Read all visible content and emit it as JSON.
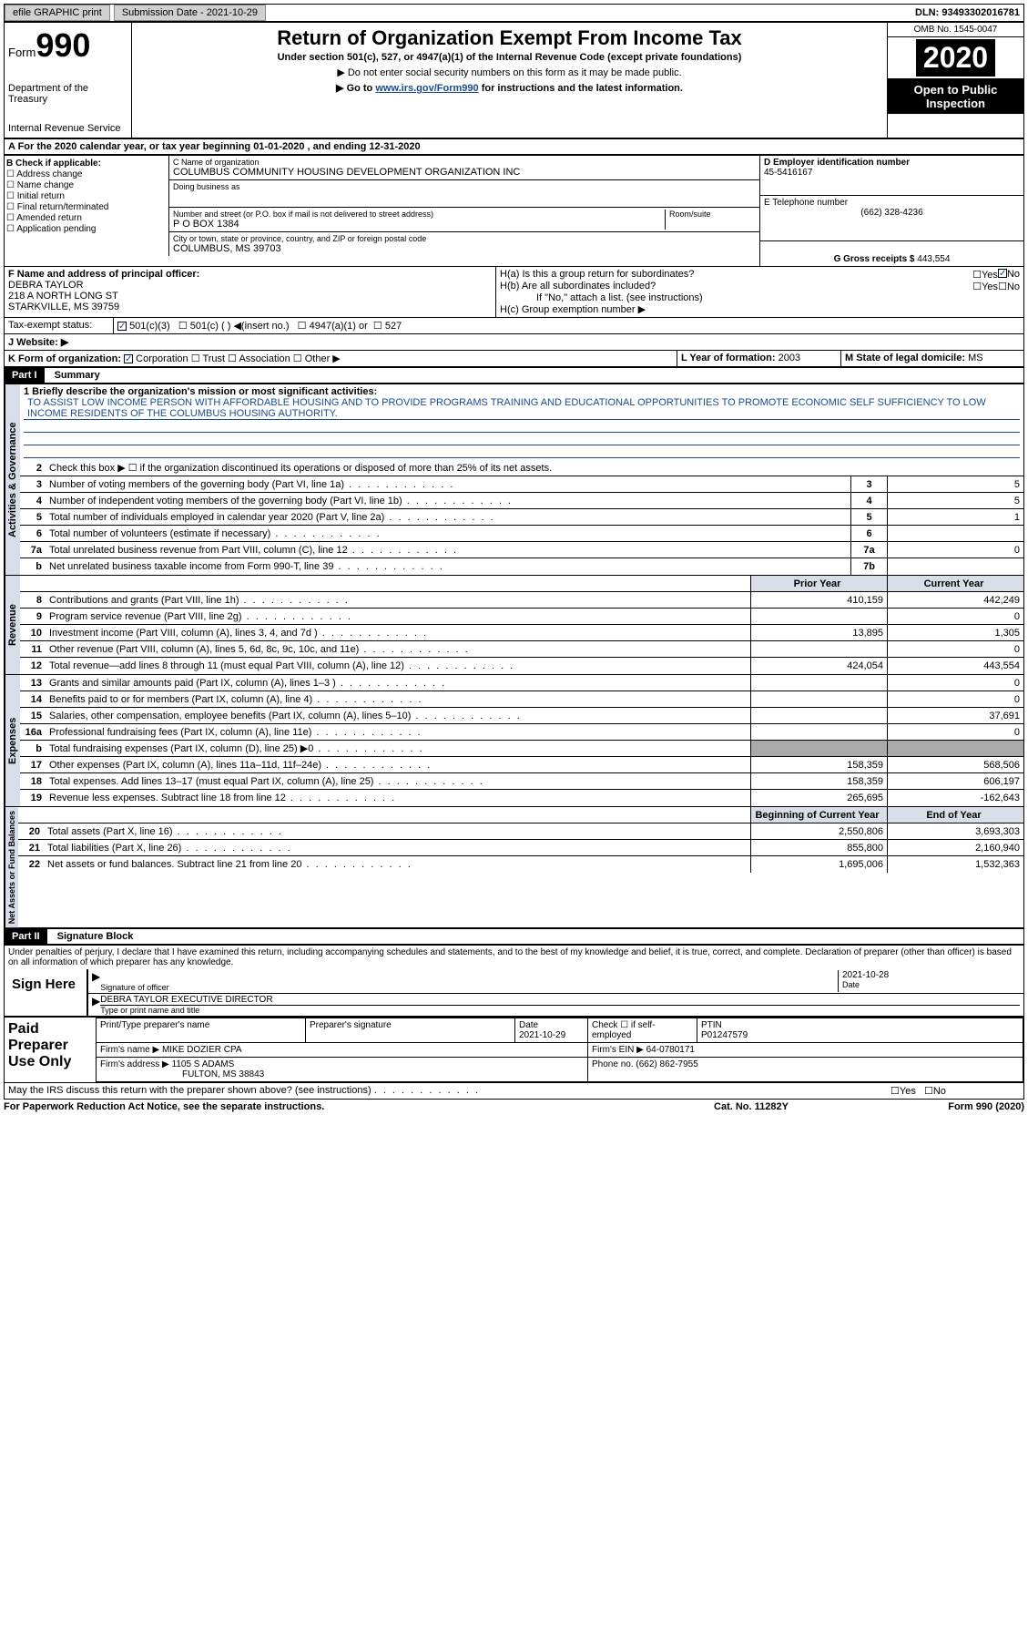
{
  "topbar": {
    "efile": "efile GRAPHIC print",
    "submission_label": "Submission Date - 2021-10-29",
    "dln": "DLN: 93493302016781"
  },
  "header": {
    "form_label": "Form",
    "form_number": "990",
    "dept1": "Department of the Treasury",
    "dept2": "Internal Revenue Service",
    "title": "Return of Organization Exempt From Income Tax",
    "subtitle": "Under section 501(c), 527, or 4947(a)(1) of the Internal Revenue Code (except private foundations)",
    "note1": "▶ Do not enter social security numbers on this form as it may be made public.",
    "note2": "▶ Go to www.irs.gov/Form990 for instructions and the latest information.",
    "link_text": "www.irs.gov/Form990",
    "omb": "OMB No. 1545-0047",
    "year": "2020",
    "open_public": "Open to Public Inspection"
  },
  "line_a": "A For the 2020 calendar year, or tax year beginning 01-01-2020    , and ending 12-31-2020",
  "section_b": {
    "header": "B Check if applicable:",
    "items": [
      "☐ Address change",
      "☐ Name change",
      "☐ Initial return",
      "☐ Final return/terminated",
      "☐ Amended return",
      "☐ Application pending"
    ]
  },
  "section_c": {
    "name_label": "C Name of organization",
    "org_name": "COLUMBUS COMMUNITY HOUSING DEVELOPMENT ORGANIZATION INC",
    "dba_label": "Doing business as",
    "dba": "",
    "addr_label": "Number and street (or P.O. box if mail is not delivered to street address)",
    "room_label": "Room/suite",
    "addr": "P O BOX 1384",
    "city_label": "City or town, state or province, country, and ZIP or foreign postal code",
    "city": "COLUMBUS, MS  39703"
  },
  "section_d": {
    "ein_label": "D Employer identification number",
    "ein": "45-5416167",
    "phone_label": "E Telephone number",
    "phone": "(662) 328-4236",
    "gross_label": "G Gross receipts $",
    "gross": "443,554"
  },
  "section_f": {
    "label": "F  Name and address of principal officer:",
    "name": "DEBRA TAYLOR",
    "addr1": "218 A NORTH LONG ST",
    "addr2": "STARKVILLE, MS  39759"
  },
  "section_h": {
    "ha": "H(a)  Is this a group return for subordinates?",
    "hb": "H(b)  Are all subordinates included?",
    "hb_note": "If \"No,\" attach a list. (see instructions)",
    "hc": "H(c)  Group exemption number ▶",
    "yes": "Yes",
    "no": "No"
  },
  "tax_exempt": {
    "label": "Tax-exempt status:",
    "opt1": "501(c)(3)",
    "opt2": "501(c) (  ) ◀(insert no.)",
    "opt3": "4947(a)(1) or",
    "opt4": "527"
  },
  "website": {
    "label": "J   Website: ▶"
  },
  "section_k": {
    "label": "K Form of organization:",
    "corp": "Corporation",
    "trust": "Trust",
    "assoc": "Association",
    "other": "Other ▶"
  },
  "section_l": {
    "label": "L Year of formation:",
    "value": "2003"
  },
  "section_m": {
    "label": "M State of legal domicile:",
    "value": "MS"
  },
  "part1": {
    "header": "Part I",
    "title": "Summary",
    "line1_label": "1  Briefly describe the organization's mission or most significant activities:",
    "mission": "TO ASSIST LOW INCOME PERSON WITH AFFORDABLE HOUSING AND TO PROVIDE PROGRAMS TRAINING AND EDUCATIONAL OPPORTUNITIES TO PROMOTE ECONOMIC SELF SUFFICIENCY TO LOW INCOME RESIDENTS OF THE COLUMBUS HOUSING AUTHORITY.",
    "line2": "Check this box ▶ ☐  if the organization discontinued its operations or disposed of more than 25% of its net assets.",
    "vert_activities": "Activities & Governance",
    "vert_revenue": "Revenue",
    "vert_expenses": "Expenses",
    "vert_net": "Net Assets or Fund Balances",
    "prior_year": "Prior Year",
    "current_year": "Current Year",
    "beg_year": "Beginning of Current Year",
    "end_year": "End of Year",
    "rows_gov": [
      {
        "num": "3",
        "text": "Number of voting members of the governing body (Part VI, line 1a)",
        "box": "3",
        "val": "5"
      },
      {
        "num": "4",
        "text": "Number of independent voting members of the governing body (Part VI, line 1b)",
        "box": "4",
        "val": "5"
      },
      {
        "num": "5",
        "text": "Total number of individuals employed in calendar year 2020 (Part V, line 2a)",
        "box": "5",
        "val": "1"
      },
      {
        "num": "6",
        "text": "Total number of volunteers (estimate if necessary)",
        "box": "6",
        "val": ""
      },
      {
        "num": "7a",
        "text": "Total unrelated business revenue from Part VIII, column (C), line 12",
        "box": "7a",
        "val": "0"
      },
      {
        "num": "b",
        "text": "Net unrelated business taxable income from Form 990-T, line 39",
        "box": "7b",
        "val": ""
      }
    ],
    "rows_rev": [
      {
        "num": "8",
        "text": "Contributions and grants (Part VIII, line 1h)",
        "prior": "410,159",
        "curr": "442,249"
      },
      {
        "num": "9",
        "text": "Program service revenue (Part VIII, line 2g)",
        "prior": "",
        "curr": "0"
      },
      {
        "num": "10",
        "text": "Investment income (Part VIII, column (A), lines 3, 4, and 7d )",
        "prior": "13,895",
        "curr": "1,305"
      },
      {
        "num": "11",
        "text": "Other revenue (Part VIII, column (A), lines 5, 6d, 8c, 9c, 10c, and 11e)",
        "prior": "",
        "curr": "0"
      },
      {
        "num": "12",
        "text": "Total revenue—add lines 8 through 11 (must equal Part VIII, column (A), line 12)",
        "prior": "424,054",
        "curr": "443,554"
      }
    ],
    "rows_exp": [
      {
        "num": "13",
        "text": "Grants and similar amounts paid (Part IX, column (A), lines 1–3 )",
        "prior": "",
        "curr": "0"
      },
      {
        "num": "14",
        "text": "Benefits paid to or for members (Part IX, column (A), line 4)",
        "prior": "",
        "curr": "0"
      },
      {
        "num": "15",
        "text": "Salaries, other compensation, employee benefits (Part IX, column (A), lines 5–10)",
        "prior": "",
        "curr": "37,691"
      },
      {
        "num": "16a",
        "text": "Professional fundraising fees (Part IX, column (A), line 11e)",
        "prior": "",
        "curr": "0"
      },
      {
        "num": "b",
        "text": "Total fundraising expenses (Part IX, column (D), line 25) ▶0",
        "prior": "",
        "curr": "",
        "grey": true
      },
      {
        "num": "17",
        "text": "Other expenses (Part IX, column (A), lines 11a–11d, 11f–24e)",
        "prior": "158,359",
        "curr": "568,506"
      },
      {
        "num": "18",
        "text": "Total expenses. Add lines 13–17 (must equal Part IX, column (A), line 25)",
        "prior": "158,359",
        "curr": "606,197"
      },
      {
        "num": "19",
        "text": "Revenue less expenses. Subtract line 18 from line 12",
        "prior": "265,695",
        "curr": "-162,643"
      }
    ],
    "rows_net": [
      {
        "num": "20",
        "text": "Total assets (Part X, line 16)",
        "prior": "2,550,806",
        "curr": "3,693,303"
      },
      {
        "num": "21",
        "text": "Total liabilities (Part X, line 26)",
        "prior": "855,800",
        "curr": "2,160,940"
      },
      {
        "num": "22",
        "text": "Net assets or fund balances. Subtract line 21 from line 20",
        "prior": "1,695,006",
        "curr": "1,532,363"
      }
    ]
  },
  "part2": {
    "header": "Part II",
    "title": "Signature Block",
    "declaration": "Under penalties of perjury, I declare that I have examined this return, including accompanying schedules and statements, and to the best of my knowledge and belief, it is true, correct, and complete. Declaration of preparer (other than officer) is based on all information of which preparer has any knowledge.",
    "sign_here": "Sign Here",
    "sig_officer": "Signature of officer",
    "date_label": "Date",
    "sig_date": "2021-10-28",
    "name_title": "DEBRA TAYLOR  EXECUTIVE DIRECTOR",
    "type_label": "Type or print name and title",
    "paid": "Paid Preparer Use Only",
    "prep_name_label": "Print/Type preparer's name",
    "prep_sig_label": "Preparer's signature",
    "prep_date_label": "Date",
    "prep_date": "2021-10-29",
    "check_self": "Check ☐ if self-employed",
    "ptin_label": "PTIN",
    "ptin": "P01247579",
    "firm_name_label": "Firm's name     ▶",
    "firm_name": "MIKE DOZIER CPA",
    "firm_ein_label": "Firm's EIN ▶",
    "firm_ein": "64-0780171",
    "firm_addr_label": "Firm's address ▶",
    "firm_addr1": "1105 S ADAMS",
    "firm_addr2": "FULTON, MS  38843",
    "firm_phone_label": "Phone no.",
    "firm_phone": "(662) 862-7955",
    "discuss": "May the IRS discuss this return with the preparer shown above? (see instructions)"
  },
  "footer": {
    "left": "For Paperwork Reduction Act Notice, see the separate instructions.",
    "mid": "Cat. No. 11282Y",
    "right": "Form 990 (2020)"
  }
}
